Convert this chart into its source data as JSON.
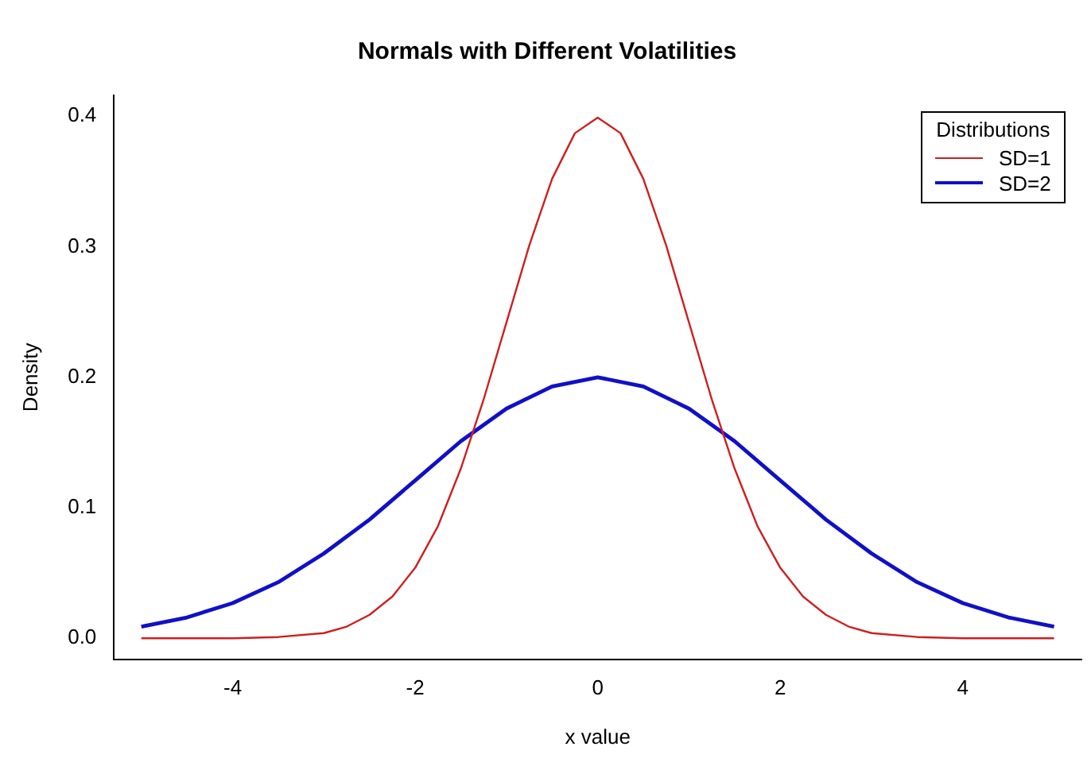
{
  "chart_data": {
    "type": "line",
    "title": "Normals with Different Volatilities",
    "xlabel": "x value",
    "ylabel": "Density",
    "legend_title": "Distributions",
    "series": [
      {
        "name": "SD=1",
        "color": "#cc2020",
        "x": [
          -5,
          -4.5,
          -4,
          -3.5,
          -3,
          -2.75,
          -2.5,
          -2.25,
          -2,
          -1.75,
          -1.5,
          -1.25,
          -1,
          -0.75,
          -0.5,
          -0.25,
          0,
          0.25,
          0.5,
          0.75,
          1,
          1.25,
          1.5,
          1.75,
          2,
          2.25,
          2.5,
          2.75,
          3,
          3.5,
          4,
          4.5,
          5
        ],
        "values": [
          0,
          0,
          0,
          0.001,
          0.004,
          0.009,
          0.018,
          0.032,
          0.054,
          0.086,
          0.13,
          0.183,
          0.242,
          0.301,
          0.352,
          0.387,
          0.399,
          0.387,
          0.352,
          0.301,
          0.242,
          0.183,
          0.13,
          0.086,
          0.054,
          0.032,
          0.018,
          0.009,
          0.004,
          0.001,
          0,
          0,
          0
        ]
      },
      {
        "name": "SD=2",
        "color": "#1010c8",
        "x": [
          -5,
          -4.5,
          -4,
          -3.5,
          -3,
          -2.5,
          -2,
          -1.5,
          -1,
          -0.5,
          0,
          0.5,
          1,
          1.5,
          2,
          2.5,
          3,
          3.5,
          4,
          4.5,
          5
        ],
        "values": [
          0.009,
          0.016,
          0.027,
          0.043,
          0.065,
          0.091,
          0.121,
          0.151,
          0.176,
          0.193,
          0.2,
          0.193,
          0.176,
          0.151,
          0.121,
          0.091,
          0.065,
          0.043,
          0.027,
          0.016,
          0.009
        ]
      }
    ],
    "xlim": [
      -5.3,
      5.3
    ],
    "xticks": [
      -4,
      -2,
      0,
      2,
      4
    ],
    "ylim": [
      -0.016,
      0.416
    ],
    "yticks": [
      {
        "value": 0,
        "label": "0.0"
      },
      0.1,
      0.2,
      0.3,
      0.4
    ],
    "grid": false,
    "legend": "top right",
    "marker": "none",
    "line_style": "solid"
  }
}
